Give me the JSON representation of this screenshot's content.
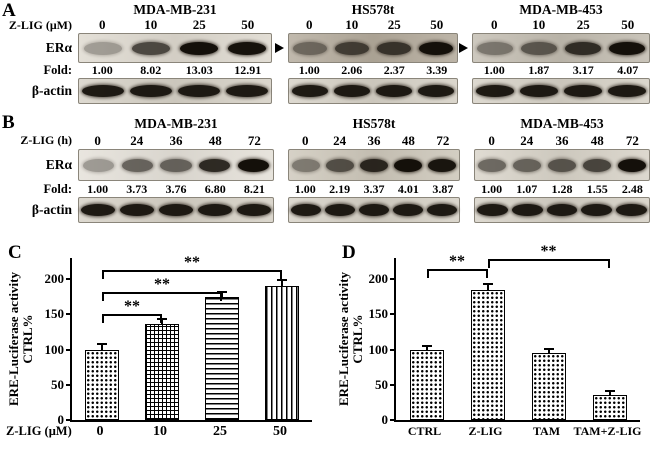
{
  "figure": {
    "panels": {
      "A": {
        "label": "A",
        "treatment_label": "Z-LIG (μM)",
        "er_label": "ERα",
        "fold_label": "Fold:",
        "actin_label": "β-actin",
        "groups": [
          {
            "name": "MDA-MB-231",
            "lanes": [
              "0",
              "10",
              "25",
              "50"
            ],
            "folds": [
              "1.00",
              "8.02",
              "13.03",
              "12.91"
            ],
            "er_bg": "#ded9cf",
            "actin_bg": "#d6d1c6"
          },
          {
            "name": "HS578t",
            "lanes": [
              "0",
              "10",
              "25",
              "50"
            ],
            "folds": [
              "1.00",
              "2.06",
              "2.37",
              "3.39"
            ],
            "er_bg": "#b3aa9b",
            "actin_bg": "#d6d1c6"
          },
          {
            "name": "MDA-MB-453",
            "lanes": [
              "0",
              "10",
              "25",
              "50"
            ],
            "folds": [
              "1.00",
              "1.87",
              "3.17",
              "4.07"
            ],
            "er_bg": "#c2bcb0",
            "actin_bg": "#d6d1c6"
          }
        ]
      },
      "B": {
        "label": "B",
        "treatment_label": "Z-LIG (h)",
        "er_label": "ERα",
        "fold_label": "Fold:",
        "actin_label": "β-actin",
        "groups": [
          {
            "name": "MDA-MB-231",
            "lanes": [
              "0",
              "24",
              "36",
              "48",
              "72"
            ],
            "folds": [
              "1.00",
              "3.73",
              "3.76",
              "6.80",
              "8.21"
            ],
            "er_bg": "#e4e0d8",
            "actin_bg": "#d6d1c6"
          },
          {
            "name": "HS578t",
            "lanes": [
              "0",
              "24",
              "36",
              "48",
              "72"
            ],
            "folds": [
              "1.00",
              "2.19",
              "3.37",
              "4.01",
              "3.87"
            ],
            "er_bg": "#cdc7ba",
            "actin_bg": "#d6d1c6"
          },
          {
            "name": "MDA-MB-453",
            "lanes": [
              "0",
              "24",
              "36",
              "48",
              "72"
            ],
            "folds": [
              "1.00",
              "1.07",
              "1.28",
              "1.55",
              "2.48"
            ],
            "er_bg": "#d8d3c8",
            "actin_bg": "#d6d1c6"
          }
        ]
      }
    }
  },
  "chart_data": [
    {
      "type": "bar",
      "panel_label": "C",
      "categories": [
        "0",
        "10",
        "25",
        "50"
      ],
      "values": [
        100,
        137,
        175,
        190
      ],
      "errors": [
        7,
        5,
        5,
        8
      ],
      "xlabel": "Z-LIG (μM)",
      "ylabel_lines": [
        "ERE-Luciferase activity",
        "CTRL%"
      ],
      "ylim": [
        0,
        230
      ],
      "yticks": [
        0,
        50,
        100,
        150,
        200
      ],
      "grid": false,
      "hatches": [
        "dots",
        "grid",
        "hlines",
        "vlines"
      ],
      "bar_color": "#ffffff",
      "significance": [
        {
          "from": 0,
          "to": 1,
          "y": 150,
          "label": "**"
        },
        {
          "from": 0,
          "to": 2,
          "y": 182,
          "label": "**"
        },
        {
          "from": 0,
          "to": 3,
          "y": 213,
          "label": "**"
        }
      ]
    },
    {
      "type": "bar",
      "panel_label": "D",
      "categories": [
        "CTRL",
        "Z-LIG",
        "TAM",
        "TAM+Z-LIG"
      ],
      "values": [
        100,
        185,
        95,
        35
      ],
      "errors": [
        4,
        7,
        4,
        5
      ],
      "xlabel": "",
      "ylabel_lines": [
        "ERE-Luciferase activity",
        "CTRL%"
      ],
      "ylim": [
        0,
        230
      ],
      "yticks": [
        0,
        50,
        100,
        150,
        200
      ],
      "grid": false,
      "hatches": [
        "dots",
        "dots",
        "dots",
        "dots"
      ],
      "bar_color": "#ffffff",
      "significance": [
        {
          "from": 0,
          "to": 1,
          "y": 215,
          "label": "**"
        },
        {
          "from": 1,
          "to": 3,
          "y": 228,
          "label": "**"
        }
      ]
    }
  ]
}
